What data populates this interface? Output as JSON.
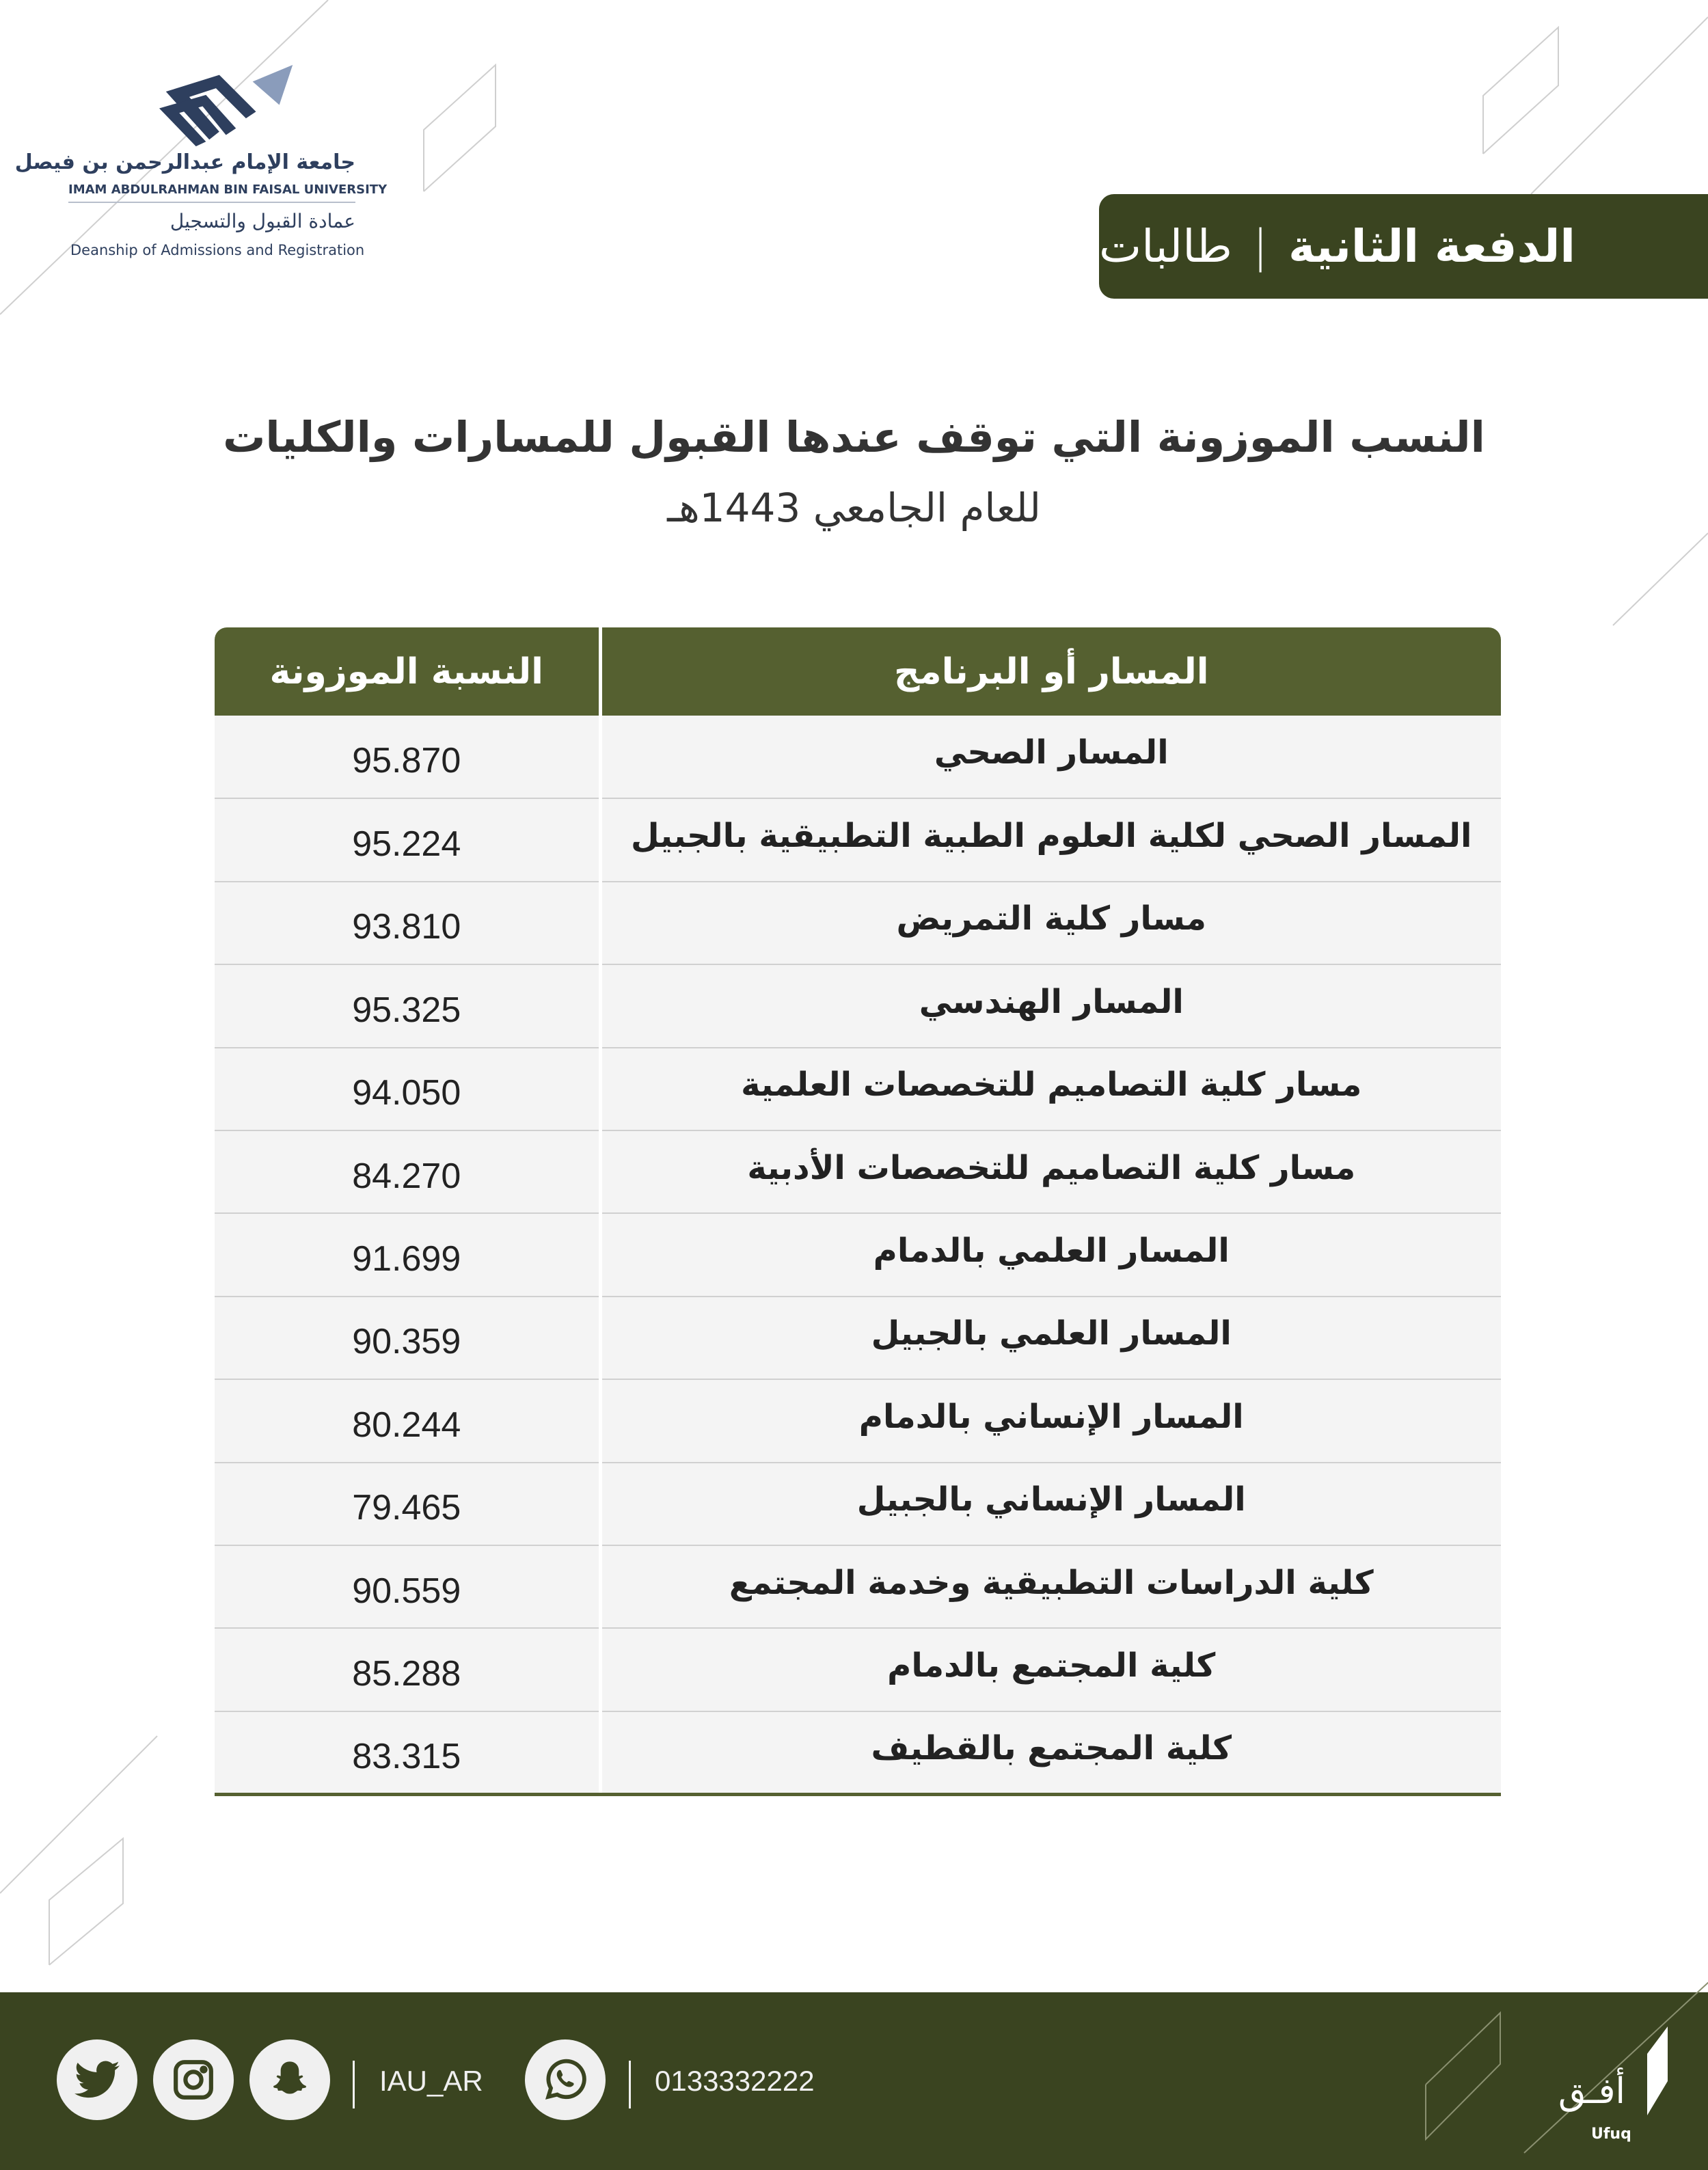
{
  "logo": {
    "name_ar": "جامعة الإمام عبدالرحمن بن فيصل",
    "name_en": "IMAM ABDULRAHMAN BIN FAISAL UNIVERSITY",
    "dept_ar": "عمادة القبول والتسجيل",
    "dept_en": "Deanship of Admissions and Registration"
  },
  "header": {
    "batch": "الدفعة الثانية",
    "separator": "|",
    "group": "طالبات"
  },
  "title": "النسب الموزونة التي توقف عندها القبول للمسارات والكليات",
  "subtitle": "للعام الجامعي  1443هـ",
  "table": {
    "columns": [
      "المسار أو البرنامج",
      "النسبة الموزونة"
    ],
    "rows": [
      {
        "program": "المسار الصحي",
        "score": "95.870"
      },
      {
        "program": "المسار الصحي لكلية العلوم الطبية التطبيقية بالجبيل",
        "score": "95.224"
      },
      {
        "program": "مسار كلية التمريض",
        "score": "93.810"
      },
      {
        "program": "المسار الهندسي",
        "score": "95.325"
      },
      {
        "program": "مسار كلية التصاميم للتخصصات العلمية",
        "score": "94.050"
      },
      {
        "program": "مسار كلية التصاميم للتخصصات الأدبية",
        "score": "84.270"
      },
      {
        "program": "المسار العلمي بالدمام",
        "score": "91.699"
      },
      {
        "program": "المسار العلمي بالجبيل",
        "score": "90.359"
      },
      {
        "program": "المسار الإنساني بالدمام",
        "score": "80.244"
      },
      {
        "program": "المسار الإنساني بالجبيل",
        "score": "79.465"
      },
      {
        "program": "كلية الدراسات التطبيقية وخدمة المجتمع",
        "score": "90.559"
      },
      {
        "program": "كلية المجتمع بالدمام",
        "score": "85.288"
      },
      {
        "program": "كلية المجتمع بالقطيف",
        "score": "83.315"
      }
    ]
  },
  "footer": {
    "social_icons": [
      "twitter-icon",
      "instagram-icon",
      "snapchat-icon"
    ],
    "handle": "IAU_AR",
    "phone_icon": "whatsapp-icon",
    "phone": "0133332222",
    "brand_ar": "أفـق",
    "brand_en": "Ufuq"
  },
  "colors": {
    "primary": "#3a4420",
    "table_header": "#556030",
    "logo": "#2e3f5e"
  }
}
